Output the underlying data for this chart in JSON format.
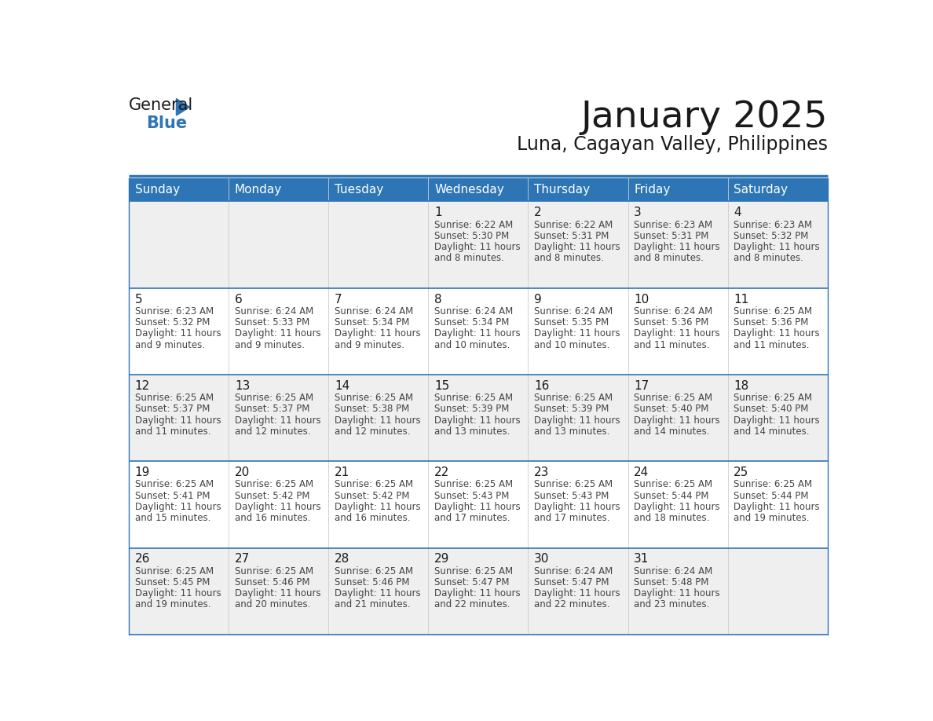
{
  "title": "January 2025",
  "subtitle": "Luna, Cagayan Valley, Philippines",
  "header_bg": "#2E75B6",
  "header_text_color": "#FFFFFF",
  "day_headers": [
    "Sunday",
    "Monday",
    "Tuesday",
    "Wednesday",
    "Thursday",
    "Friday",
    "Saturday"
  ],
  "cell_bg_even": "#EFEFEF",
  "cell_bg_odd": "#FFFFFF",
  "cell_border_color": "#2E75B6",
  "day_num_color": "#1A1A1A",
  "text_color": "#444444",
  "calendar_data": [
    [
      {
        "day": null,
        "sunrise": null,
        "sunset": null,
        "daylight_hours": null,
        "daylight_mins": null
      },
      {
        "day": null,
        "sunrise": null,
        "sunset": null,
        "daylight_hours": null,
        "daylight_mins": null
      },
      {
        "day": null,
        "sunrise": null,
        "sunset": null,
        "daylight_hours": null,
        "daylight_mins": null
      },
      {
        "day": 1,
        "sunrise": "6:22 AM",
        "sunset": "5:30 PM",
        "daylight_hours": 11,
        "daylight_mins": 8
      },
      {
        "day": 2,
        "sunrise": "6:22 AM",
        "sunset": "5:31 PM",
        "daylight_hours": 11,
        "daylight_mins": 8
      },
      {
        "day": 3,
        "sunrise": "6:23 AM",
        "sunset": "5:31 PM",
        "daylight_hours": 11,
        "daylight_mins": 8
      },
      {
        "day": 4,
        "sunrise": "6:23 AM",
        "sunset": "5:32 PM",
        "daylight_hours": 11,
        "daylight_mins": 8
      }
    ],
    [
      {
        "day": 5,
        "sunrise": "6:23 AM",
        "sunset": "5:32 PM",
        "daylight_hours": 11,
        "daylight_mins": 9
      },
      {
        "day": 6,
        "sunrise": "6:24 AM",
        "sunset": "5:33 PM",
        "daylight_hours": 11,
        "daylight_mins": 9
      },
      {
        "day": 7,
        "sunrise": "6:24 AM",
        "sunset": "5:34 PM",
        "daylight_hours": 11,
        "daylight_mins": 9
      },
      {
        "day": 8,
        "sunrise": "6:24 AM",
        "sunset": "5:34 PM",
        "daylight_hours": 11,
        "daylight_mins": 10
      },
      {
        "day": 9,
        "sunrise": "6:24 AM",
        "sunset": "5:35 PM",
        "daylight_hours": 11,
        "daylight_mins": 10
      },
      {
        "day": 10,
        "sunrise": "6:24 AM",
        "sunset": "5:36 PM",
        "daylight_hours": 11,
        "daylight_mins": 11
      },
      {
        "day": 11,
        "sunrise": "6:25 AM",
        "sunset": "5:36 PM",
        "daylight_hours": 11,
        "daylight_mins": 11
      }
    ],
    [
      {
        "day": 12,
        "sunrise": "6:25 AM",
        "sunset": "5:37 PM",
        "daylight_hours": 11,
        "daylight_mins": 11
      },
      {
        "day": 13,
        "sunrise": "6:25 AM",
        "sunset": "5:37 PM",
        "daylight_hours": 11,
        "daylight_mins": 12
      },
      {
        "day": 14,
        "sunrise": "6:25 AM",
        "sunset": "5:38 PM",
        "daylight_hours": 11,
        "daylight_mins": 12
      },
      {
        "day": 15,
        "sunrise": "6:25 AM",
        "sunset": "5:39 PM",
        "daylight_hours": 11,
        "daylight_mins": 13
      },
      {
        "day": 16,
        "sunrise": "6:25 AM",
        "sunset": "5:39 PM",
        "daylight_hours": 11,
        "daylight_mins": 13
      },
      {
        "day": 17,
        "sunrise": "6:25 AM",
        "sunset": "5:40 PM",
        "daylight_hours": 11,
        "daylight_mins": 14
      },
      {
        "day": 18,
        "sunrise": "6:25 AM",
        "sunset": "5:40 PM",
        "daylight_hours": 11,
        "daylight_mins": 14
      }
    ],
    [
      {
        "day": 19,
        "sunrise": "6:25 AM",
        "sunset": "5:41 PM",
        "daylight_hours": 11,
        "daylight_mins": 15
      },
      {
        "day": 20,
        "sunrise": "6:25 AM",
        "sunset": "5:42 PM",
        "daylight_hours": 11,
        "daylight_mins": 16
      },
      {
        "day": 21,
        "sunrise": "6:25 AM",
        "sunset": "5:42 PM",
        "daylight_hours": 11,
        "daylight_mins": 16
      },
      {
        "day": 22,
        "sunrise": "6:25 AM",
        "sunset": "5:43 PM",
        "daylight_hours": 11,
        "daylight_mins": 17
      },
      {
        "day": 23,
        "sunrise": "6:25 AM",
        "sunset": "5:43 PM",
        "daylight_hours": 11,
        "daylight_mins": 17
      },
      {
        "day": 24,
        "sunrise": "6:25 AM",
        "sunset": "5:44 PM",
        "daylight_hours": 11,
        "daylight_mins": 18
      },
      {
        "day": 25,
        "sunrise": "6:25 AM",
        "sunset": "5:44 PM",
        "daylight_hours": 11,
        "daylight_mins": 19
      }
    ],
    [
      {
        "day": 26,
        "sunrise": "6:25 AM",
        "sunset": "5:45 PM",
        "daylight_hours": 11,
        "daylight_mins": 19
      },
      {
        "day": 27,
        "sunrise": "6:25 AM",
        "sunset": "5:46 PM",
        "daylight_hours": 11,
        "daylight_mins": 20
      },
      {
        "day": 28,
        "sunrise": "6:25 AM",
        "sunset": "5:46 PM",
        "daylight_hours": 11,
        "daylight_mins": 21
      },
      {
        "day": 29,
        "sunrise": "6:25 AM",
        "sunset": "5:47 PM",
        "daylight_hours": 11,
        "daylight_mins": 22
      },
      {
        "day": 30,
        "sunrise": "6:24 AM",
        "sunset": "5:47 PM",
        "daylight_hours": 11,
        "daylight_mins": 22
      },
      {
        "day": 31,
        "sunrise": "6:24 AM",
        "sunset": "5:48 PM",
        "daylight_hours": 11,
        "daylight_mins": 23
      },
      {
        "day": null,
        "sunrise": null,
        "sunset": null,
        "daylight_hours": null,
        "daylight_mins": null
      }
    ]
  ]
}
